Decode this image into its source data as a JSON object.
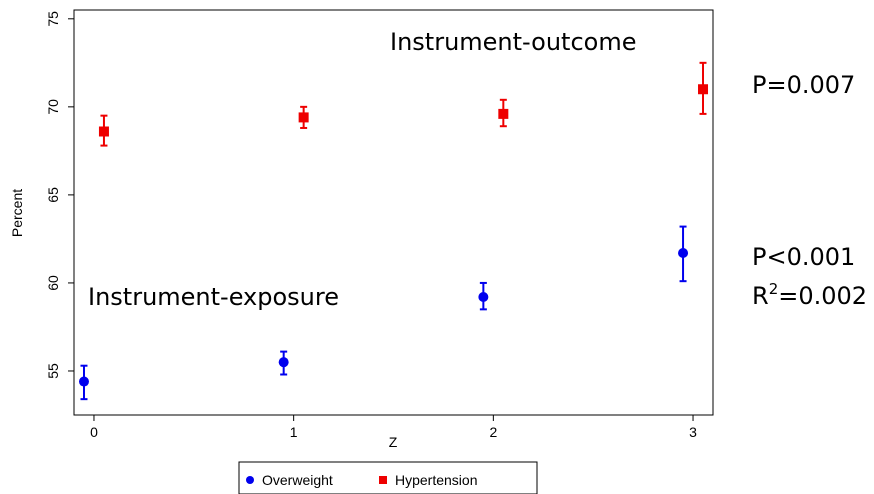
{
  "chart_data": {
    "type": "scatter",
    "xlabel": "Z",
    "ylabel": "Percent",
    "xlim": [
      -0.1,
      3.1
    ],
    "ylim": [
      52.5,
      75.5
    ],
    "x_ticks": [
      0,
      1,
      2,
      3
    ],
    "y_ticks": [
      55,
      60,
      65,
      70,
      75
    ],
    "grid": false,
    "legend_position": "bottom",
    "error_bars": true,
    "series": [
      {
        "name": "Overweight",
        "color": "#0000ee",
        "marker": "circle",
        "x": [
          -0.05,
          0.95,
          1.95,
          2.95
        ],
        "y": [
          54.4,
          55.5,
          59.2,
          61.7
        ],
        "err_low": [
          53.4,
          54.8,
          58.5,
          60.1
        ],
        "err_high": [
          55.3,
          56.1,
          60.0,
          63.2
        ]
      },
      {
        "name": "Hypertension",
        "color": "#ee0000",
        "marker": "square",
        "x": [
          0.05,
          1.05,
          2.05,
          3.05
        ],
        "y": [
          68.6,
          69.4,
          69.6,
          71.0
        ],
        "err_low": [
          67.8,
          68.8,
          68.9,
          69.6
        ],
        "err_high": [
          69.5,
          70.0,
          70.4,
          72.5
        ]
      }
    ],
    "annotations": {
      "instrument_outcome": "Instrument-outcome",
      "instrument_exposure": "Instrument-exposure",
      "p_outcome": "P=0.007",
      "p_exposure": "P<0.001",
      "r2_prefix": "R",
      "r2_sup": "2",
      "r2_value": "=0.002"
    }
  }
}
